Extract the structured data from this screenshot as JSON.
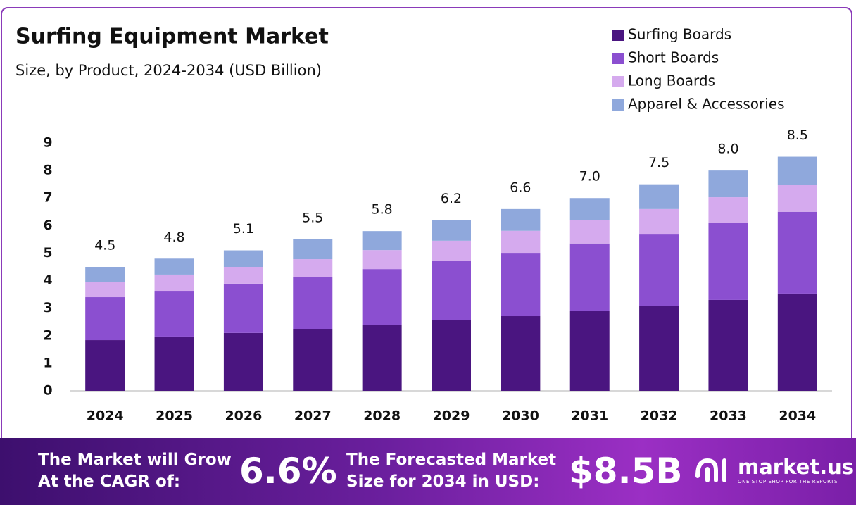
{
  "chart_data": {
    "type": "stacked_bar",
    "title": "Surfing Equipment Market",
    "subtitle": "Size, by Product, 2024-2034 (USD Billion)",
    "categories": [
      "2024",
      "2025",
      "2026",
      "2027",
      "2028",
      "2029",
      "2030",
      "2031",
      "2032",
      "2033",
      "2034"
    ],
    "series": [
      {
        "name": "Surfing Boards",
        "color": "#4a1580",
        "values": [
          1.84,
          1.97,
          2.1,
          2.25,
          2.38,
          2.56,
          2.71,
          2.89,
          3.09,
          3.3,
          3.53
        ]
      },
      {
        "name": "Short Boards",
        "color": "#8b4fd0",
        "values": [
          1.56,
          1.66,
          1.79,
          1.89,
          2.04,
          2.15,
          2.3,
          2.46,
          2.61,
          2.79,
          2.97
        ]
      },
      {
        "name": "Long Boards",
        "color": "#d5aaee",
        "values": [
          0.54,
          0.59,
          0.61,
          0.64,
          0.69,
          0.74,
          0.8,
          0.84,
          0.9,
          0.94,
          0.99
        ]
      },
      {
        "name": "Apparel & Accessories",
        "color": "#8fa8dc",
        "values": [
          0.56,
          0.58,
          0.6,
          0.72,
          0.69,
          0.75,
          0.79,
          0.81,
          0.9,
          0.97,
          1.01
        ]
      }
    ],
    "totals": [
      4.5,
      4.8,
      5.1,
      5.5,
      5.8,
      6.2,
      6.6,
      7,
      7.5,
      8,
      8.5
    ],
    "total_labels": [
      "4.5",
      "4.8",
      "5.1",
      "5.5",
      "5.8",
      "6.2",
      "6.6",
      "7.0",
      "7.5",
      "8.0",
      "8.5"
    ],
    "ylim": [
      0,
      9
    ],
    "yticks": [
      0,
      1,
      2,
      3,
      4,
      5,
      6,
      7,
      8,
      9
    ],
    "grid": false,
    "legend": "top-right"
  },
  "footer": {
    "cagr_text": [
      "The Market will Grow",
      "At the CAGR of:"
    ],
    "cagr_value": "6.6%",
    "forecast_text": [
      "The Forecasted Market",
      "Size for 2034 in USD:"
    ],
    "forecast_value": "$8.5B",
    "brand": "market.us",
    "tagline": "ONE STOP SHOP FOR THE REPORTS"
  }
}
